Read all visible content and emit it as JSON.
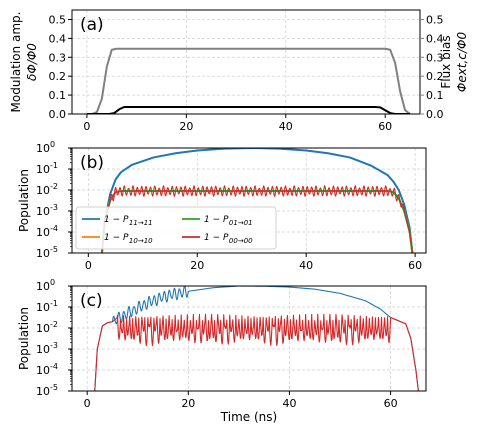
{
  "chart_data": [
    {
      "type": "line",
      "panel_label": "(a)",
      "xlim": [
        -3,
        67
      ],
      "ylim": [
        0,
        0.55
      ],
      "x_ticks": [
        0,
        20,
        40,
        60
      ],
      "x_tick_labels": [
        "0",
        "20",
        "40",
        "60"
      ],
      "y_ticks": [
        0.0,
        0.1,
        0.2,
        0.3,
        0.4,
        0.5
      ],
      "y_tick_labels": [
        "0.0",
        "0.1",
        "0.2",
        "0.3",
        "0.4",
        "0.5"
      ],
      "ylabel_lines": [
        "Modulation amp.",
        "δΦ/Φ0"
      ],
      "right_axis": {
        "ylim": [
          0,
          0.55
        ],
        "y_ticks": [
          0.0,
          0.1,
          0.2,
          0.3,
          0.4,
          0.5
        ],
        "y_tick_labels": [
          "0.0",
          "0.1",
          "0.2",
          "0.3",
          "0.4",
          "0.5"
        ],
        "ylabel_lines": [
          "Flux bias",
          "Φext,c/Φ0"
        ],
        "color": "#808080"
      },
      "grid": true,
      "series": [
        {
          "axis": "right",
          "color": "#808080",
          "x": [
            0,
            1,
            2,
            3,
            4,
            5,
            6,
            60,
            61,
            62,
            63,
            64,
            65
          ],
          "y": [
            0,
            0,
            0.01,
            0.08,
            0.25,
            0.34,
            0.345,
            0.345,
            0.34,
            0.27,
            0.12,
            0.02,
            0
          ]
        },
        {
          "axis": "left",
          "color": "#000000",
          "x": [
            0,
            3,
            4.5,
            5.5,
            6.5,
            7.5,
            58,
            59,
            60,
            61,
            62,
            65
          ],
          "y": [
            0,
            0,
            0,
            0.005,
            0.025,
            0.037,
            0.037,
            0.035,
            0.02,
            0.005,
            0,
            0
          ]
        }
      ]
    },
    {
      "type": "line",
      "panel_label": "(b)",
      "xlim": [
        -3,
        62
      ],
      "ylog": true,
      "ylim_exp": [
        -5,
        0
      ],
      "x_ticks": [
        0,
        20,
        40,
        60
      ],
      "x_tick_labels": [
        "0",
        "20",
        "40",
        "60"
      ],
      "y_tick_labels": [
        "10",
        "10",
        "10",
        "10",
        "10",
        "10"
      ],
      "y_tick_exponents": [
        "-5",
        "-4",
        "-3",
        "-2",
        "-1",
        "0"
      ],
      "ylabel": "Population",
      "grid": true,
      "legend": {
        "placement": "lower-left",
        "entries": [
          {
            "label": "1 − P",
            "sub": "11→11",
            "color": "#1f77b4"
          },
          {
            "label": "1 − P",
            "sub": "10→10",
            "color": "#ff7f0e"
          },
          {
            "label": "1 − P",
            "sub": "01→01",
            "color": "#2ca02c"
          },
          {
            "label": "1 − P",
            "sub": "00→00",
            "color": "#d62728"
          }
        ]
      },
      "series": [
        {
          "label": "1 − P11→11",
          "color": "#1f77b4",
          "x": [
            2.5,
            3,
            4,
            5,
            6,
            8,
            12,
            16,
            20,
            25,
            30,
            35,
            40,
            44,
            48,
            52,
            55,
            56,
            57,
            58,
            59,
            59.5
          ],
          "y": [
            -5,
            -3.5,
            -2.2,
            -1.5,
            -1.15,
            -0.8,
            -0.45,
            -0.25,
            -0.12,
            -0.03,
            0,
            -0.03,
            -0.12,
            -0.25,
            -0.45,
            -0.85,
            -1.3,
            -1.6,
            -2.0,
            -2.7,
            -3.8,
            -5
          ]
        },
        {
          "label": "1 − P10→10",
          "color": "#ff7f0e",
          "x": [
            2.5,
            3,
            4,
            5,
            6,
            55,
            56,
            57,
            58,
            59,
            59.5
          ],
          "y": [
            -5,
            -3.5,
            -2.5,
            -2.1,
            -2.05,
            -2.05,
            -2.1,
            -2.4,
            -3.0,
            -4.0,
            -5
          ]
        },
        {
          "label": "1 − P01→01",
          "color": "#2ca02c",
          "x": [
            2.5,
            3,
            4,
            5,
            6,
            55,
            56,
            57,
            58,
            59,
            59.5
          ],
          "y": [
            -5,
            -3.5,
            -2.5,
            -2.1,
            -2.05,
            -2.05,
            -2.1,
            -2.4,
            -3.0,
            -4.0,
            -5
          ]
        },
        {
          "label": "1 − P00→00",
          "color": "#d62728",
          "oscillation": {
            "amplitude": 0.25,
            "period": 0.8
          },
          "x": [
            2.5,
            3,
            4,
            5,
            6,
            55,
            56,
            57,
            58,
            59,
            59.5
          ],
          "y": [
            -5,
            -3.5,
            -2.5,
            -2.1,
            -2.05,
            -2.05,
            -2.1,
            -2.4,
            -3.0,
            -4.0,
            -5
          ]
        }
      ]
    },
    {
      "type": "line",
      "panel_label": "(c)",
      "xlim": [
        -3,
        67
      ],
      "ylog": true,
      "ylim_exp": [
        -5,
        0
      ],
      "x_ticks": [
        0,
        20,
        40,
        60
      ],
      "x_tick_labels": [
        "0",
        "20",
        "40",
        "60"
      ],
      "y_tick_labels": [
        "10",
        "10",
        "10",
        "10",
        "10",
        "10"
      ],
      "y_tick_exponents": [
        "-5",
        "-4",
        "-3",
        "-2",
        "-1",
        "0"
      ],
      "ylabel": "Population",
      "xlabel": "Time (ns)",
      "grid": true,
      "series": [
        {
          "label": "1 − P11→11",
          "color": "#1f77b4",
          "oscillation": {
            "amplitude": 0.3,
            "period": 1.0,
            "from": 5,
            "to": 20
          },
          "x": [
            1.5,
            2,
            3,
            4,
            5,
            8,
            12,
            16,
            20,
            25,
            30,
            35,
            40,
            45,
            50,
            55,
            58,
            60,
            62,
            63,
            64,
            65,
            65.5
          ],
          "y": [
            -5,
            -3.0,
            -1.9,
            -1.75,
            -1.7,
            -1.3,
            -0.8,
            -0.45,
            -0.25,
            -0.08,
            0,
            -0.01,
            -0.05,
            -0.15,
            -0.35,
            -0.7,
            -1.1,
            -1.5,
            -1.7,
            -1.8,
            -2.5,
            -4.0,
            -5
          ]
        },
        {
          "label": "1 − P00→00",
          "color": "#d62728",
          "oscillation": {
            "amplitude": 1.2,
            "period": 1.2,
            "from": 6,
            "to": 60,
            "downward": true
          },
          "x": [
            1.5,
            2,
            3,
            4,
            5,
            6,
            60,
            62,
            63,
            64,
            65,
            65.5
          ],
          "y": [
            -5,
            -3.0,
            -1.9,
            -1.75,
            -1.7,
            -1.5,
            -1.5,
            -1.7,
            -1.8,
            -2.5,
            -4.0,
            -5
          ]
        }
      ]
    }
  ]
}
